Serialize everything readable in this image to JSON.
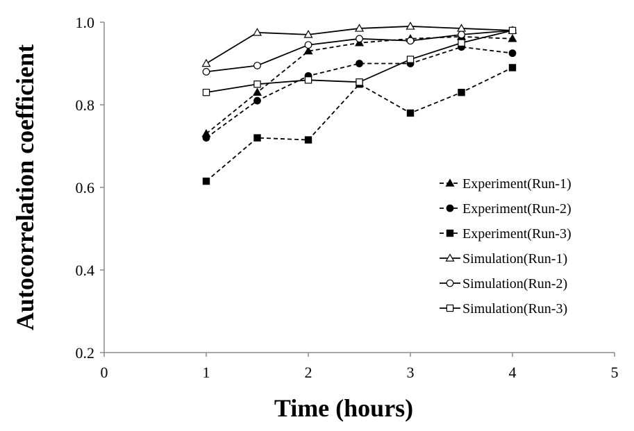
{
  "chart_data": {
    "type": "line",
    "title": "",
    "xlabel": "Time (hours)",
    "ylabel": "Autocorrelation coefficient",
    "xlim": [
      0,
      5
    ],
    "ylim": [
      0.2,
      1.0
    ],
    "xticks": [
      "0",
      "1",
      "2",
      "3",
      "4",
      "5"
    ],
    "yticks": [
      "0.2",
      "0.4",
      "0.6",
      "0.8",
      "1.0"
    ],
    "grid": false,
    "legend_position": "right",
    "x": [
      1,
      1.5,
      2,
      2.5,
      3,
      3.5,
      4
    ],
    "series": [
      {
        "name": "Experiment(Run-1)",
        "style": "dashed",
        "marker": "filled-triangle",
        "values": [
          0.73,
          0.83,
          0.93,
          0.95,
          0.96,
          0.965,
          0.96
        ]
      },
      {
        "name": "Experiment(Run-2)",
        "style": "dashed",
        "marker": "filled-circle",
        "values": [
          0.72,
          0.81,
          0.87,
          0.9,
          0.9,
          0.94,
          0.925
        ]
      },
      {
        "name": "Experiment(Run-3)",
        "style": "dashed",
        "marker": "filled-square",
        "values": [
          0.615,
          0.72,
          0.715,
          0.85,
          0.78,
          0.83,
          0.89
        ]
      },
      {
        "name": "Simulation(Run-1)",
        "style": "solid",
        "marker": "open-triangle",
        "values": [
          0.9,
          0.975,
          0.97,
          0.985,
          0.99,
          0.985,
          0.98
        ]
      },
      {
        "name": "Simulation(Run-2)",
        "style": "solid",
        "marker": "open-circle",
        "values": [
          0.88,
          0.895,
          0.945,
          0.96,
          0.955,
          0.97,
          0.98
        ]
      },
      {
        "name": "Simulation(Run-3)",
        "style": "solid",
        "marker": "open-square",
        "values": [
          0.83,
          0.85,
          0.86,
          0.855,
          0.91,
          0.95,
          0.98
        ]
      }
    ]
  }
}
